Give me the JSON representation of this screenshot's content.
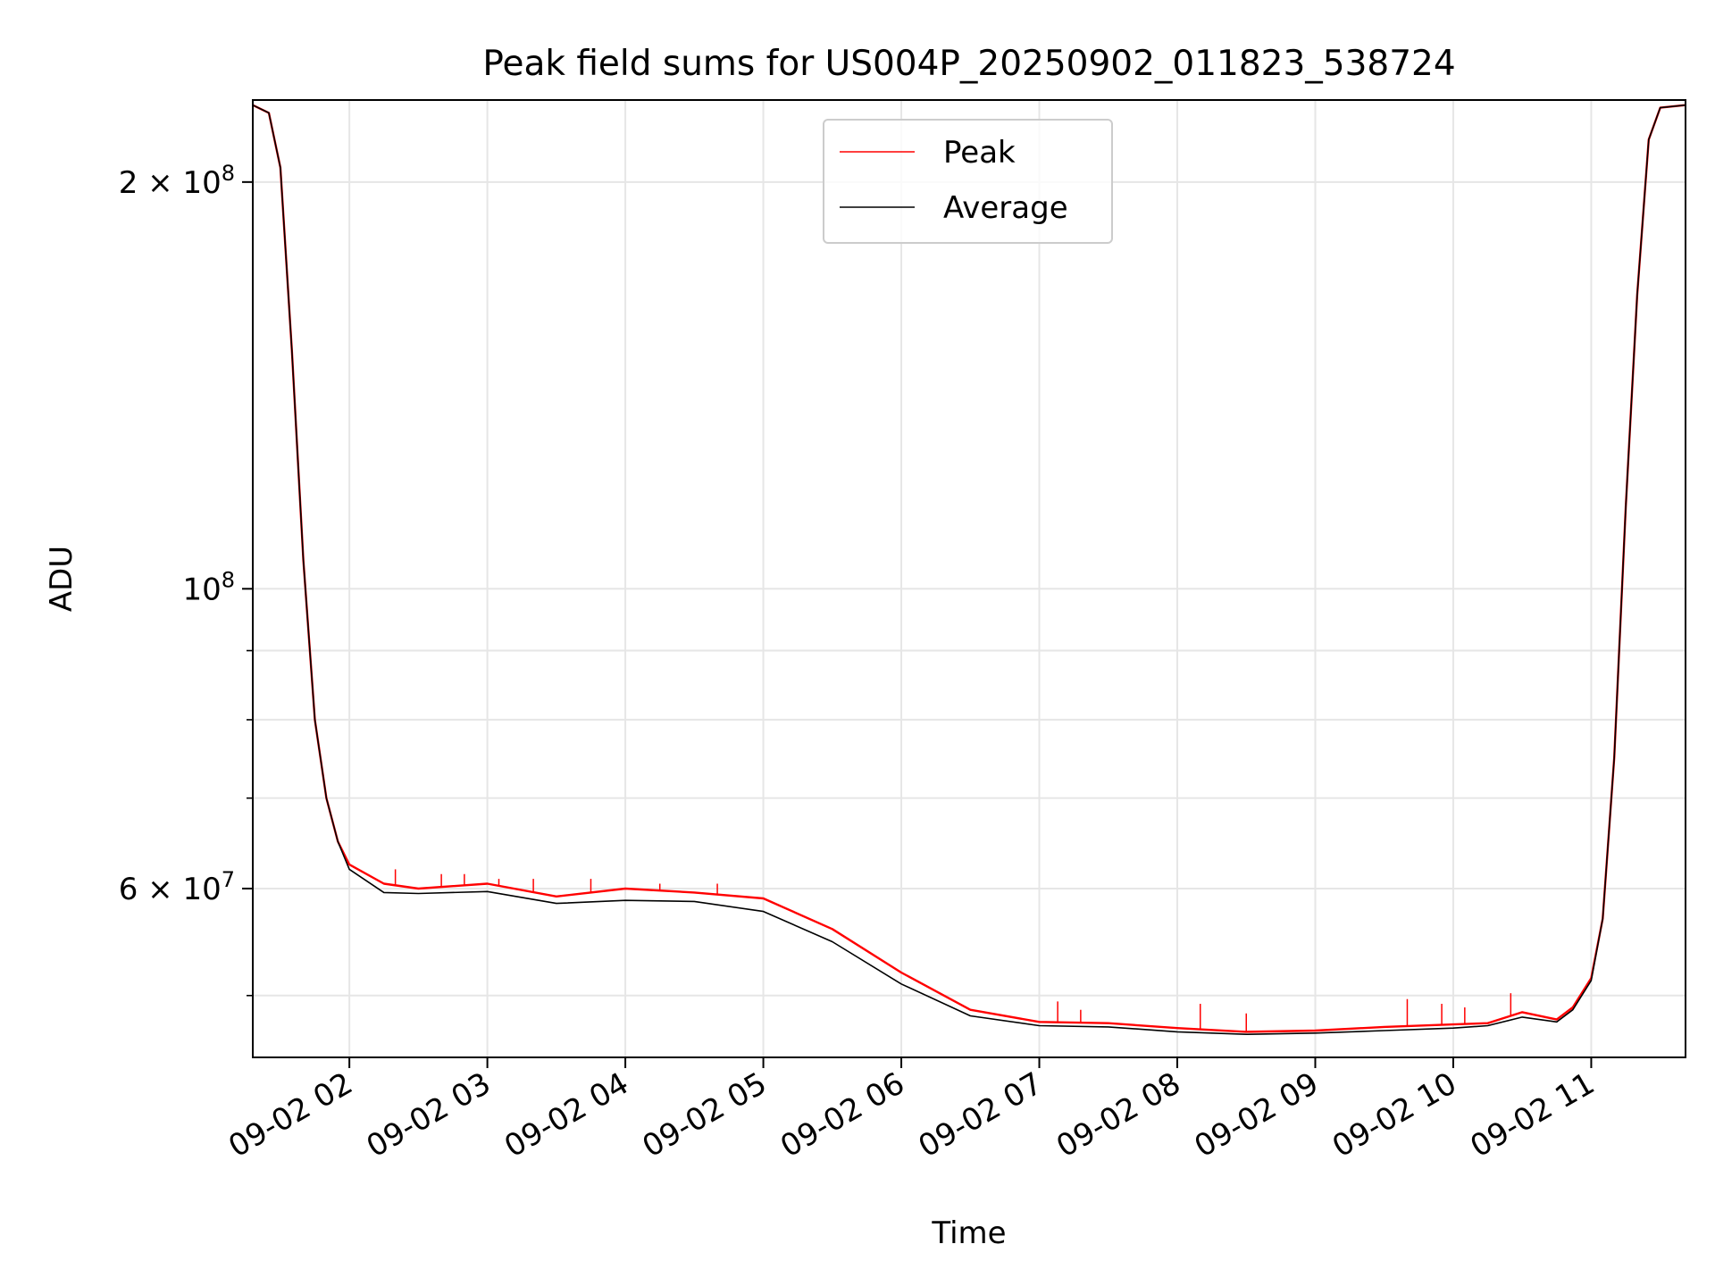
{
  "chart_data": {
    "type": "line",
    "title": "Peak field sums for US004P_20250902_011823_538724",
    "xlabel": "Time",
    "ylabel": "ADU",
    "x_range": [
      "2025-09-02 01:18",
      "2025-09-02 11:41"
    ],
    "ylim": [
      45000000,
      230000000
    ],
    "yscale": "log",
    "grid": true,
    "legend_position": "upper center",
    "x_ticks": [
      "09-02 02",
      "09-02 03",
      "09-02 04",
      "09-02 05",
      "09-02 06",
      "09-02 07",
      "09-02 08",
      "09-02 09",
      "09-02 10",
      "09-02 11"
    ],
    "y_ticks": [
      {
        "value": 60000000,
        "mantissa": "6",
        "exp": "7",
        "label": "6 × 10^7"
      },
      {
        "value": 100000000,
        "mantissa": "",
        "exp": "8",
        "label": "10^8"
      },
      {
        "value": 200000000,
        "mantissa": "2",
        "exp": "8",
        "label": "2 × 10^8"
      }
    ],
    "x": [
      "2025-09-02 01:18",
      "2025-09-02 01:25",
      "2025-09-02 01:30",
      "2025-09-02 01:35",
      "2025-09-02 01:40",
      "2025-09-02 01:45",
      "2025-09-02 01:50",
      "2025-09-02 01:55",
      "2025-09-02 02:00",
      "2025-09-02 02:15",
      "2025-09-02 02:30",
      "2025-09-02 03:00",
      "2025-09-02 03:30",
      "2025-09-02 04:00",
      "2025-09-02 04:30",
      "2025-09-02 05:00",
      "2025-09-02 05:30",
      "2025-09-02 06:00",
      "2025-09-02 06:30",
      "2025-09-02 07:00",
      "2025-09-02 07:30",
      "2025-09-02 08:00",
      "2025-09-02 08:30",
      "2025-09-02 09:00",
      "2025-09-02 09:30",
      "2025-09-02 10:00",
      "2025-09-02 10:15",
      "2025-09-02 10:30",
      "2025-09-02 10:45",
      "2025-09-02 10:52",
      "2025-09-02 11:00",
      "2025-09-02 11:05",
      "2025-09-02 11:10",
      "2025-09-02 11:15",
      "2025-09-02 11:20",
      "2025-09-02 11:25",
      "2025-09-02 11:30",
      "2025-09-02 11:41"
    ],
    "series": [
      {
        "name": "Peak",
        "color": "#ff0000",
        "values": [
          228000000,
          225000000,
          205000000,
          150000000,
          105000000,
          80000000,
          70000000,
          65000000,
          62500000,
          60500000,
          60000000,
          60500000,
          59200000,
          60000000,
          59600000,
          59000000,
          56000000,
          52000000,
          48800000,
          47800000,
          47700000,
          47300000,
          47000000,
          47100000,
          47400000,
          47600000,
          47700000,
          48600000,
          48000000,
          49000000,
          51500000,
          57000000,
          75000000,
          115000000,
          165000000,
          215000000,
          227000000,
          228000000
        ],
        "spikes": [
          {
            "x": "2025-09-02 02:20",
            "value": 62000000
          },
          {
            "x": "2025-09-02 02:40",
            "value": 61500000
          },
          {
            "x": "2025-09-02 02:50",
            "value": 61500000
          },
          {
            "x": "2025-09-02 03:05",
            "value": 61000000
          },
          {
            "x": "2025-09-02 03:20",
            "value": 61000000
          },
          {
            "x": "2025-09-02 03:45",
            "value": 61000000
          },
          {
            "x": "2025-09-02 04:15",
            "value": 60500000
          },
          {
            "x": "2025-09-02 04:40",
            "value": 60500000
          },
          {
            "x": "2025-09-02 07:08",
            "value": 49500000
          },
          {
            "x": "2025-09-02 07:18",
            "value": 48800000
          },
          {
            "x": "2025-09-02 08:10",
            "value": 49300000
          },
          {
            "x": "2025-09-02 08:30",
            "value": 48500000
          },
          {
            "x": "2025-09-02 09:40",
            "value": 49700000
          },
          {
            "x": "2025-09-02 09:55",
            "value": 49300000
          },
          {
            "x": "2025-09-02 10:05",
            "value": 49000000
          },
          {
            "x": "2025-09-02 10:25",
            "value": 50200000
          }
        ]
      },
      {
        "name": "Average",
        "color": "#000000",
        "values": [
          228000000,
          225000000,
          205000000,
          150000000,
          105000000,
          80000000,
          70000000,
          65000000,
          62000000,
          59600000,
          59500000,
          59700000,
          58500000,
          58800000,
          58700000,
          57700000,
          54800000,
          51000000,
          48300000,
          47500000,
          47400000,
          47000000,
          46800000,
          46900000,
          47100000,
          47300000,
          47500000,
          48200000,
          47800000,
          48800000,
          51300000,
          57000000,
          75000000,
          115000000,
          165000000,
          215000000,
          227000000,
          228000000
        ]
      }
    ]
  }
}
